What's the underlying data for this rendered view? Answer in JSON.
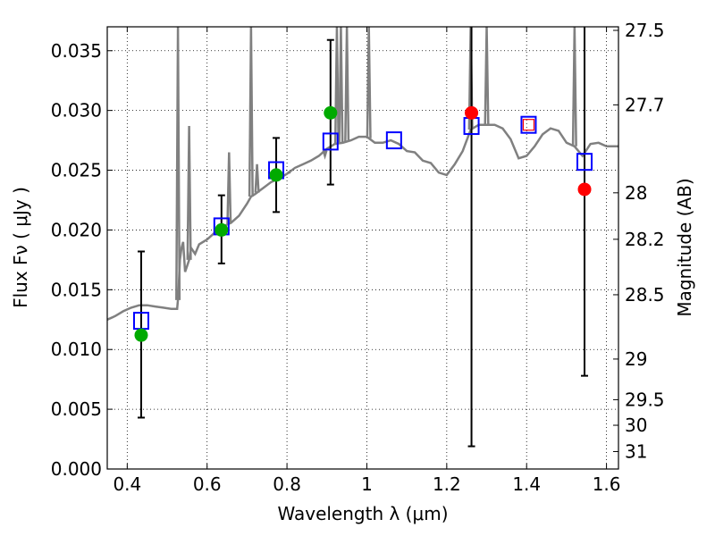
{
  "chart_data": {
    "type": "scatter",
    "title": "",
    "xlabel": "Wavelength  λ (μm)",
    "ylabel": "Flux  Fν  ( μJy )",
    "y2label": "Magnitude (AB)",
    "xlim": [
      0.35,
      1.63
    ],
    "ylim": [
      0.0,
      0.037
    ],
    "grid": true,
    "x_ticks": [
      0.4,
      0.6,
      0.8,
      1.0,
      1.2,
      1.4,
      1.6
    ],
    "x_tick_labels": [
      "0.4",
      "0.6",
      "0.8",
      "1",
      "1.2",
      "1.4",
      "1.6"
    ],
    "y_ticks": [
      0.0,
      0.005,
      0.01,
      0.015,
      0.02,
      0.025,
      0.03,
      0.035
    ],
    "y_tick_labels": [
      "0.000",
      "0.005",
      "0.010",
      "0.015",
      "0.020",
      "0.025",
      "0.030",
      "0.035"
    ],
    "y2_ticks": [
      {
        "label": "27.5",
        "flux": 0.0367
      },
      {
        "label": "27.7",
        "flux": 0.03047
      },
      {
        "label": "28",
        "flux": 0.02311
      },
      {
        "label": "28.2",
        "flux": 0.01922
      },
      {
        "label": "28.5",
        "flux": 0.01458
      },
      {
        "label": "29",
        "flux": 0.0092
      },
      {
        "label": "29.5",
        "flux": 0.0058
      },
      {
        "label": "30",
        "flux": 0.00366
      },
      {
        "label": "31",
        "flux": 0.00146
      }
    ],
    "series": [
      {
        "kind": "model_sed",
        "color": "#808080",
        "x": [
          0.35,
          0.37,
          0.39,
          0.41,
          0.43,
          0.45,
          0.47,
          0.49,
          0.51,
          0.525,
          0.528,
          0.532,
          0.536,
          0.54,
          0.545,
          0.55,
          0.555,
          0.56,
          0.57,
          0.58,
          0.6,
          0.62,
          0.64,
          0.66,
          0.68,
          0.7,
          0.71,
          0.72,
          0.74,
          0.76,
          0.78,
          0.8,
          0.82,
          0.84,
          0.86,
          0.88,
          0.9,
          0.92,
          0.94,
          0.96,
          0.98,
          1.0,
          1.02,
          1.04,
          1.06,
          1.08,
          1.1,
          1.12,
          1.14,
          1.16,
          1.18,
          1.2,
          1.22,
          1.24,
          1.26,
          1.28,
          1.3,
          1.32,
          1.34,
          1.36,
          1.38,
          1.4,
          1.42,
          1.44,
          1.46,
          1.48,
          1.5,
          1.52,
          1.54,
          1.56,
          1.58,
          1.6,
          1.63
        ],
        "y": [
          0.0125,
          0.0128,
          0.0132,
          0.0135,
          0.0137,
          0.0137,
          0.0136,
          0.0135,
          0.0134,
          0.0134,
          0.0145,
          0.0175,
          0.0185,
          0.019,
          0.0165,
          0.017,
          0.0175,
          0.0185,
          0.018,
          0.0188,
          0.0192,
          0.0198,
          0.0203,
          0.0206,
          0.0212,
          0.0222,
          0.0228,
          0.023,
          0.0235,
          0.024,
          0.0243,
          0.0247,
          0.0252,
          0.0255,
          0.0258,
          0.0262,
          0.0268,
          0.0272,
          0.0273,
          0.0275,
          0.0278,
          0.0278,
          0.0273,
          0.0273,
          0.0275,
          0.0272,
          0.0266,
          0.0265,
          0.0258,
          0.0256,
          0.0248,
          0.0246,
          0.0255,
          0.0266,
          0.0284,
          0.0288,
          0.0288,
          0.0288,
          0.0285,
          0.0276,
          0.026,
          0.0262,
          0.027,
          0.028,
          0.0285,
          0.0283,
          0.0273,
          0.027,
          0.0262,
          0.0272,
          0.0273,
          0.027,
          0.027
        ]
      },
      {
        "kind": "model_photometry_squares",
        "color": "#0000ff",
        "x": [
          0.435,
          0.636,
          0.773,
          0.909,
          1.068,
          1.262,
          1.405,
          1.545
        ],
        "y": [
          0.0124,
          0.0203,
          0.025,
          0.0274,
          0.0275,
          0.0287,
          0.0288,
          0.0257
        ]
      },
      {
        "kind": "observed_detections",
        "color": "#00aa00",
        "x": [
          0.435,
          0.636,
          0.773,
          0.909
        ],
        "y": [
          0.0112,
          0.02,
          0.0246,
          0.0298
        ],
        "yerr_low": [
          0.0043,
          0.0172,
          0.0215,
          0.0238
        ],
        "yerr_high": [
          0.0182,
          0.0229,
          0.0277,
          0.0359
        ]
      },
      {
        "kind": "observed_limits",
        "color": "#ff0000",
        "x": [
          1.262,
          1.545
        ],
        "y": [
          0.0298,
          0.0234
        ],
        "yerr_low": [
          0.0019,
          0.0078
        ],
        "yerr_high": [
          0.037,
          0.037
        ]
      }
    ],
    "small_red_square": {
      "x": 1.405,
      "y": 0.0288
    }
  }
}
